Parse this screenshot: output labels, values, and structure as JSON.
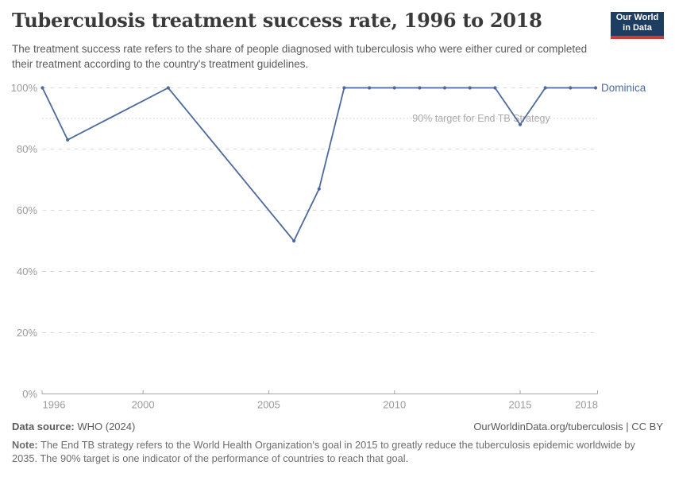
{
  "header": {
    "title": "Tuberculosis treatment success rate, 1996 to 2018",
    "subtitle": "The treatment success rate refers to the share of people diagnosed with tuberculosis who were either cured or completed their treatment according to the country's treatment guidelines.",
    "logo": {
      "line1": "Our World",
      "line2": "in Data",
      "bg_color": "#1d3d63",
      "accent_color": "#cf3b32"
    }
  },
  "chart_data": {
    "type": "line",
    "title": "Tuberculosis treatment success rate, 1996 to 2018",
    "xlabel": "",
    "ylabel": "",
    "xlim": [
      1996,
      2018
    ],
    "ylim": [
      0,
      100
    ],
    "grid": true,
    "legend_position": "end-of-line",
    "x_ticks": [
      1996,
      2000,
      2005,
      2010,
      2015,
      2018
    ],
    "y_ticks": [
      0,
      20,
      40,
      60,
      80,
      100
    ],
    "y_tick_suffix": "%",
    "target_line": {
      "value": 90,
      "label": "90% target for End TB Strategy"
    },
    "series": [
      {
        "name": "Dominica",
        "color": "#4c6a9c",
        "points": [
          [
            1996,
            100
          ],
          [
            1997,
            83
          ],
          [
            2001,
            100
          ],
          [
            2006,
            50
          ],
          [
            2007,
            67
          ],
          [
            2008,
            100
          ],
          [
            2009,
            100
          ],
          [
            2010,
            100
          ],
          [
            2011,
            100
          ],
          [
            2012,
            100
          ],
          [
            2013,
            100
          ],
          [
            2014,
            100
          ],
          [
            2015,
            88
          ],
          [
            2016,
            100
          ],
          [
            2017,
            100
          ],
          [
            2018,
            100
          ]
        ]
      }
    ]
  },
  "footer": {
    "datasource_label": "Data source:",
    "datasource_value": " WHO (2024)",
    "link": "OurWorldinData.org/tuberculosis",
    "license": " | CC BY",
    "note_label": "Note:",
    "note_text": " The End TB strategy refers to the World Health Organization's goal in 2015 to greatly reduce the tuberculosis epidemic worldwide by 2035. The 90% target is one indicator of the performance of countries to reach that goal."
  }
}
